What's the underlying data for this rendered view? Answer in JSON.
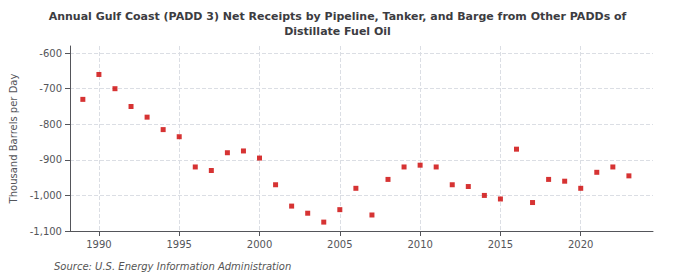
{
  "chart_data": {
    "type": "scatter",
    "title": "Annual Gulf Coast (PADD 3) Net Receipts by Pipeline, Tanker, and Barge from Other PADDs of\nDistillate Fuel Oil",
    "ylabel": "Thousand Barrels per Day",
    "annotations": [
      "Source: U.S. Energy Information Administration"
    ],
    "x": [
      1989,
      1990,
      1991,
      1992,
      1993,
      1994,
      1995,
      1996,
      1997,
      1998,
      1999,
      2000,
      2001,
      2002,
      2003,
      2004,
      2005,
      2006,
      2007,
      2008,
      2009,
      2010,
      2011,
      2012,
      2013,
      2014,
      2015,
      2016,
      2017,
      2018,
      2019,
      2020,
      2021,
      2022,
      2023
    ],
    "values": [
      -730,
      -660,
      -700,
      -750,
      -780,
      -815,
      -835,
      -920,
      -930,
      -880,
      -875,
      -895,
      -970,
      -1030,
      -1050,
      -1075,
      -1040,
      -980,
      -1055,
      -955,
      -920,
      -915,
      -920,
      -970,
      -975,
      -1000,
      -1010,
      -870,
      -1020,
      -955,
      -960,
      -980,
      -935,
      -920,
      -945
    ],
    "color": "#cc0000",
    "marker": "square",
    "xlim": [
      1988.2,
      2024.5
    ],
    "xticks": [
      1990,
      1995,
      2000,
      2005,
      2010,
      2015,
      2020
    ],
    "ylim": [
      -1100,
      -580
    ],
    "yticks": [
      -600,
      -700,
      -800,
      -900,
      {
        "value": -1000,
        "label": "-1,000"
      },
      {
        "value": -1100,
        "label": "-1,100"
      }
    ],
    "grid": true
  }
}
